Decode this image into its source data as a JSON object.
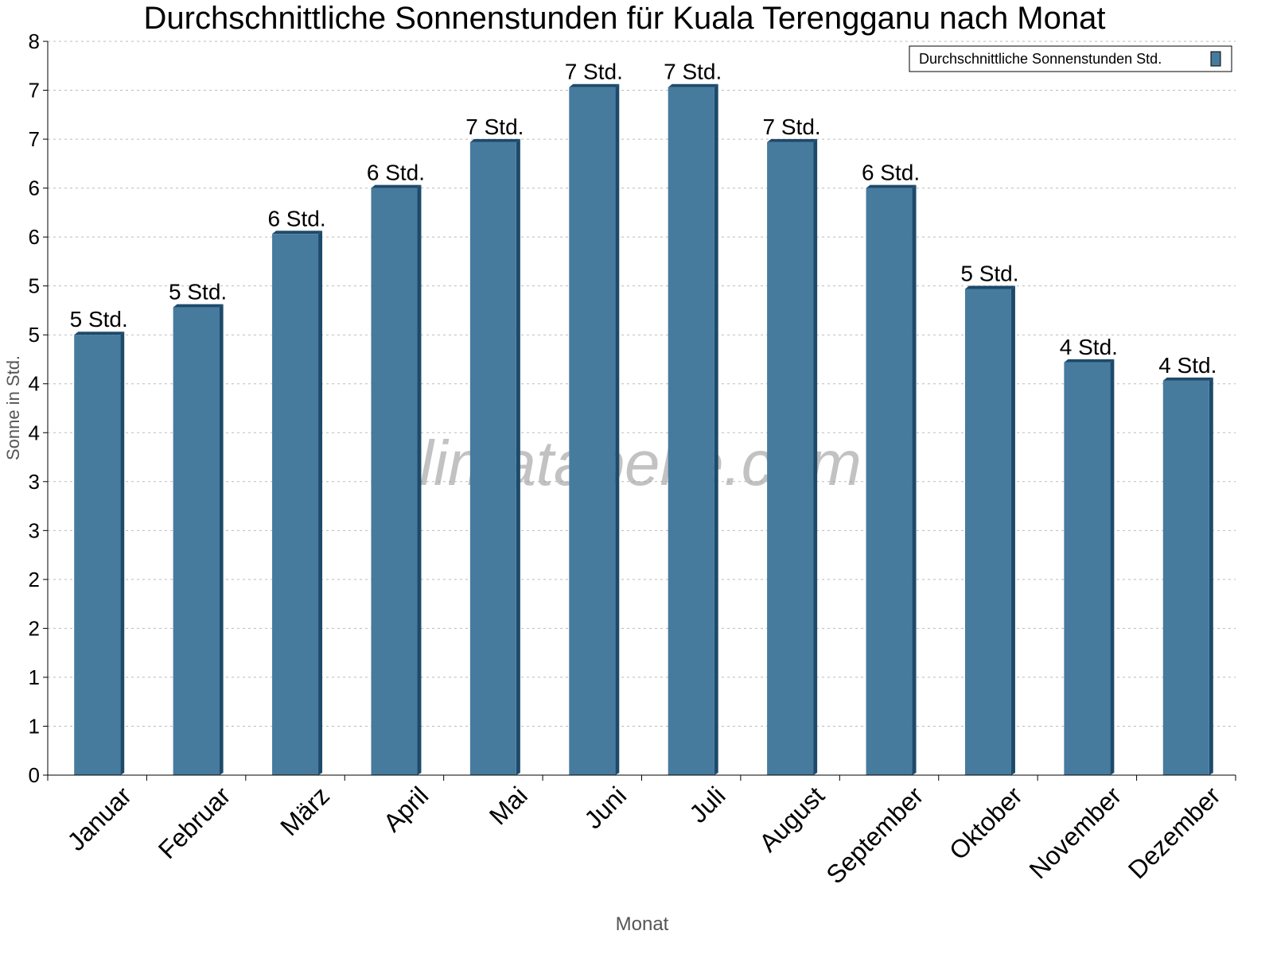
{
  "chart_data": {
    "type": "bar",
    "title": "Durchschnittliche Sonnenstunden für Kuala Terengganu nach Monat",
    "xlabel": "Monat",
    "ylabel": "Sonne in Std.",
    "ylim": [
      0,
      8
    ],
    "y_ticks": [
      "0",
      "1",
      "1",
      "2",
      "2",
      "3",
      "3",
      "4",
      "4",
      "5",
      "5",
      "6",
      "6",
      "7",
      "7",
      "8"
    ],
    "grid": true,
    "legend_position": "top-right",
    "watermark": "klimatabelle.com",
    "categories": [
      "Januar",
      "Februar",
      "März",
      "April",
      "Mai",
      "Juni",
      "Juli",
      "August",
      "September",
      "Oktober",
      "November",
      "Dezember"
    ],
    "series": [
      {
        "name": "Durchschnittliche Sonnenstunden Std.",
        "color": "#467b9e",
        "values": [
          4.8,
          5.1,
          5.9,
          6.4,
          6.9,
          7.5,
          7.5,
          6.9,
          6.4,
          5.3,
          4.5,
          4.3
        ],
        "data_labels": [
          "5 Std.",
          "5 Std.",
          "6 Std.",
          "6 Std.",
          "7 Std.",
          "7 Std.",
          "7 Std.",
          "7 Std.",
          "6 Std.",
          "5 Std.",
          "4 Std.",
          "4 Std."
        ]
      }
    ]
  }
}
